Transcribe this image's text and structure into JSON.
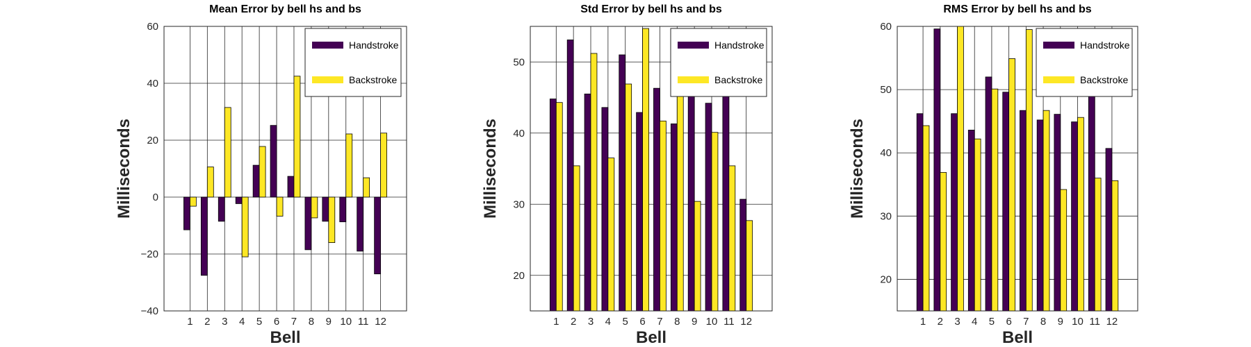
{
  "chart_data": [
    {
      "type": "bar",
      "title": "Mean Error by bell hs and bs",
      "xlabel": "Bell",
      "ylabel": "Milliseconds",
      "categories": [
        "1",
        "2",
        "3",
        "4",
        "5",
        "6",
        "7",
        "8",
        "9",
        "10",
        "11",
        "12"
      ],
      "ylim": [
        -40,
        60
      ],
      "yticks": [
        "−40",
        "−20",
        "0",
        "20",
        "40",
        "60"
      ],
      "grid": true,
      "legend_position": "top-right",
      "series": [
        {
          "name": "Handstroke",
          "color": "#440154",
          "values": [
            -11.5,
            -27.5,
            -8.5,
            -2.3,
            11.2,
            25.2,
            7.3,
            -18.5,
            -8.5,
            -8.7,
            -19.0,
            -27.0
          ]
        },
        {
          "name": "Backstroke",
          "color": "#fde725",
          "values": [
            -3.2,
            10.6,
            31.5,
            -21.0,
            17.8,
            -6.7,
            42.5,
            -7.3,
            -16.0,
            22.2,
            6.8,
            22.5
          ]
        }
      ]
    },
    {
      "type": "bar",
      "title": "Std Error by bell hs and bs",
      "xlabel": "Bell",
      "ylabel": "Milliseconds",
      "categories": [
        "1",
        "2",
        "3",
        "4",
        "5",
        "6",
        "7",
        "8",
        "9",
        "10",
        "11",
        "12"
      ],
      "ylim": [
        15,
        55
      ],
      "yticks": [
        "20",
        "30",
        "40",
        "50"
      ],
      "grid": true,
      "legend_position": "top-right",
      "series": [
        {
          "name": "Handstroke",
          "color": "#440154",
          "values": [
            44.8,
            53.1,
            45.5,
            43.6,
            51.0,
            42.9,
            46.3,
            41.3,
            45.3,
            44.2,
            46.2,
            30.7
          ]
        },
        {
          "name": "Backstroke",
          "color": "#fde725",
          "values": [
            44.3,
            35.4,
            51.2,
            36.5,
            46.9,
            54.7,
            41.7,
            46.2,
            30.4,
            40.1,
            35.4,
            27.7
          ]
        }
      ]
    },
    {
      "type": "bar",
      "title": "RMS Error by bell hs and bs",
      "xlabel": "Bell",
      "ylabel": "Milliseconds",
      "categories": [
        "1",
        "2",
        "3",
        "4",
        "5",
        "6",
        "7",
        "8",
        "9",
        "10",
        "11",
        "12"
      ],
      "ylim": [
        15,
        60
      ],
      "yticks": [
        "20",
        "30",
        "40",
        "50",
        "60"
      ],
      "grid": true,
      "legend_position": "top-right",
      "series": [
        {
          "name": "Handstroke",
          "color": "#440154",
          "values": [
            46.2,
            59.6,
            46.2,
            43.6,
            52.0,
            49.6,
            46.7,
            45.2,
            46.1,
            44.9,
            50.0,
            40.7
          ]
        },
        {
          "name": "Backstroke",
          "color": "#fde725",
          "values": [
            44.3,
            36.9,
            60.0,
            42.2,
            50.1,
            54.9,
            59.5,
            46.7,
            34.2,
            45.6,
            36.0,
            35.6
          ]
        }
      ]
    }
  ]
}
